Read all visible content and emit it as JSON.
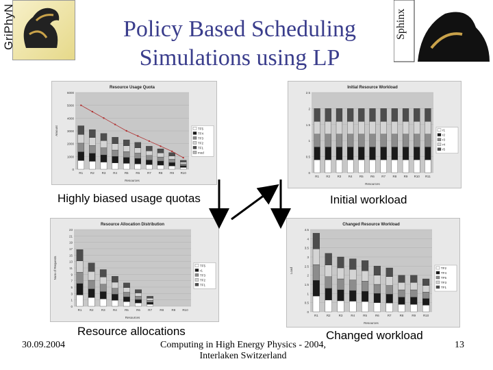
{
  "slide": {
    "title_line1": "Policy Based Scheduling",
    "title_line2": "Simulations using LP",
    "logo_left_text": "GriPhyN",
    "logo_right_text": "Sphinx",
    "date": "30.09.2004",
    "footer_line1": "Computing in High Energy Physics - 2004,",
    "footer_line2": "Interlaken Switzerland",
    "page_number": "13"
  },
  "captions": {
    "top_left": "Highly biased usage quotas",
    "top_right": "Initial workload",
    "bottom_left": "Resource allocations",
    "bottom_right": "Changed workload"
  },
  "colors": {
    "title": "#3a3d8c",
    "panel_bg": "#e8e8e8",
    "quota_line": "#b03030"
  },
  "chart_data": [
    {
      "type": "bar",
      "title": "Resource Usage Quota",
      "xlabel": "Resources",
      "ylabel": "Amount",
      "categories": [
        "R1",
        "R2",
        "R3",
        "R4",
        "R5",
        "R6",
        "R7",
        "R8",
        "R9",
        "R10"
      ],
      "yticks": [
        "0",
        "1000",
        "2000",
        "3000",
        "4000",
        "5000",
        "6000"
      ],
      "ylim": [
        0,
        6000
      ],
      "legend": [
        "TF5",
        "TF4",
        "TF3",
        "TF2",
        "TF1",
        "mod"
      ],
      "totals": [
        3400,
        3100,
        2800,
        2500,
        2300,
        2100,
        1800,
        1600,
        1300,
        700
      ],
      "line_values": [
        5000,
        4500,
        4000,
        3500,
        3000,
        2600,
        2200,
        1800,
        1400,
        900
      ]
    },
    {
      "type": "bar",
      "title": "Initial Resource Workload",
      "xlabel": "Resources",
      "categories": [
        "R1",
        "R2",
        "R3",
        "R4",
        "R5",
        "R6",
        "R7",
        "R8",
        "R9",
        "R10",
        "R11"
      ],
      "yticks": [
        "0",
        "0.5",
        "1",
        "1.5",
        "2",
        "2.5"
      ],
      "ylim": [
        0,
        2.5
      ],
      "legend": [
        "r1",
        "r2",
        "r3",
        "r4",
        "r5"
      ],
      "totals": [
        2,
        2,
        2,
        2,
        2,
        2,
        2,
        2,
        2,
        2,
        2
      ]
    },
    {
      "type": "bar",
      "title": "Resource Allocation Distribution",
      "xlabel": "Resources",
      "ylabel": "Num of Requests",
      "categories": [
        "R1",
        "R2",
        "R3",
        "R4",
        "R5",
        "R6",
        "R7",
        "R8",
        "R9",
        "R10"
      ],
      "yticks": [
        "0",
        "1",
        "3",
        "5",
        "7",
        "9",
        "11",
        "13",
        "15",
        "17",
        "19",
        "21",
        "23"
      ],
      "ylim": [
        0,
        23
      ],
      "legend": [
        "TF5",
        "r1",
        "TF3",
        "TF2",
        "TF1"
      ],
      "totals": [
        17,
        13,
        11,
        9,
        7,
        5,
        3,
        0,
        0,
        0
      ]
    },
    {
      "type": "bar",
      "title": "Changed Resource Workload",
      "xlabel": "Resources",
      "ylabel": "Load",
      "categories": [
        "R1",
        "R2",
        "R3",
        "R4",
        "R5",
        "R6",
        "R7",
        "R8",
        "R9",
        "R10"
      ],
      "yticks": [
        "0",
        "0.5",
        "1",
        "1.5",
        "2",
        "2.5",
        "3",
        "3.5",
        "4",
        "4.5"
      ],
      "ylim": [
        0,
        4.5
      ],
      "legend": [
        "TF2",
        "TF4",
        "TF5",
        "TF3",
        "TF1"
      ],
      "totals": [
        4.3,
        3.2,
        3.0,
        2.9,
        2.8,
        2.5,
        2.4,
        2.0,
        2.0,
        1.8
      ]
    }
  ]
}
